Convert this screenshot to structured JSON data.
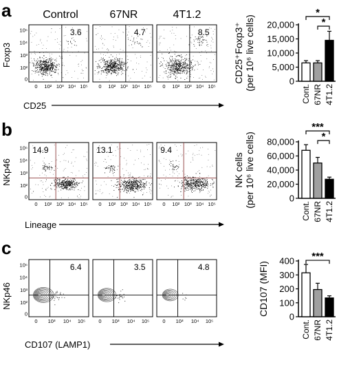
{
  "columns": [
    "Control",
    "67NR",
    "4T1.2"
  ],
  "facs_ticks": [
    "0",
    "10²",
    "10³",
    "10⁴",
    "10⁵"
  ],
  "facs_ticks_c": [
    "0",
    "10³",
    "10⁴",
    "10⁵"
  ],
  "rows": [
    {
      "letter": "a",
      "x_label": "CD25",
      "y_label": "Foxp3",
      "percentages": [
        "3.6",
        "4.7",
        "8.5"
      ],
      "bar_ylabel_1": "CD25⁺Foxp3⁺",
      "bar_ylabel_2": "(per 10⁶ live cells)"
    },
    {
      "letter": "b",
      "x_label": "Lineage",
      "y_label": "NKp46",
      "percentages": [
        "14.9",
        "13.1",
        "9.4"
      ],
      "bar_ylabel_1": "NK cells",
      "bar_ylabel_2": "(per 10⁶ live cells)"
    },
    {
      "letter": "c",
      "x_label": "CD107 (LAMP1)",
      "y_label": "NKp46",
      "percentages": [
        "6.4",
        "3.5",
        "4.8"
      ],
      "bar_ylabel_1": "CD107 (MFI)",
      "bar_ylabel_2": ""
    }
  ],
  "colors": {
    "control": "#ffffff",
    "67NR": "#a0a0a0",
    "4T1.2": "#000000",
    "gate_line": "#8b3a3a"
  },
  "chart_data": [
    {
      "type": "bar",
      "panel": "a",
      "categories": [
        "Cont.",
        "67NR",
        "4T1.2"
      ],
      "values": [
        6500,
        6500,
        14500
      ],
      "errors": [
        800,
        800,
        3200
      ],
      "yticks": [
        "0",
        "5,000",
        "10,000",
        "15,000",
        "20,000"
      ],
      "ylim": [
        0,
        20000
      ],
      "ylabel": "CD25⁺Foxp3⁺ (per 10⁶ live cells)",
      "significance": [
        {
          "from": 0,
          "to": 2,
          "label": "*"
        },
        {
          "from": 1,
          "to": 2,
          "label": "*"
        }
      ]
    },
    {
      "type": "bar",
      "panel": "b",
      "categories": [
        "Cont.",
        "67NR",
        "4T1.2"
      ],
      "values": [
        68000,
        50000,
        27000
      ],
      "errors": [
        8000,
        8000,
        3000
      ],
      "yticks": [
        "0",
        "20,000",
        "40,000",
        "60,000",
        "80,000"
      ],
      "ylim": [
        0,
        80000
      ],
      "ylabel": "NK cells (per 10⁶ live cells)",
      "significance": [
        {
          "from": 0,
          "to": 2,
          "label": "***"
        },
        {
          "from": 1,
          "to": 2,
          "label": "*"
        }
      ]
    },
    {
      "type": "bar",
      "panel": "c",
      "categories": [
        "Cont.",
        "67NR",
        "4T1.2"
      ],
      "values": [
        315,
        195,
        135
      ],
      "errors": [
        60,
        45,
        15
      ],
      "yticks": [
        "0",
        "100",
        "200",
        "300",
        "400"
      ],
      "ylim": [
        0,
        400
      ],
      "ylabel": "CD107 (MFI)",
      "significance": [
        {
          "from": 0,
          "to": 2,
          "label": "***"
        }
      ]
    }
  ]
}
